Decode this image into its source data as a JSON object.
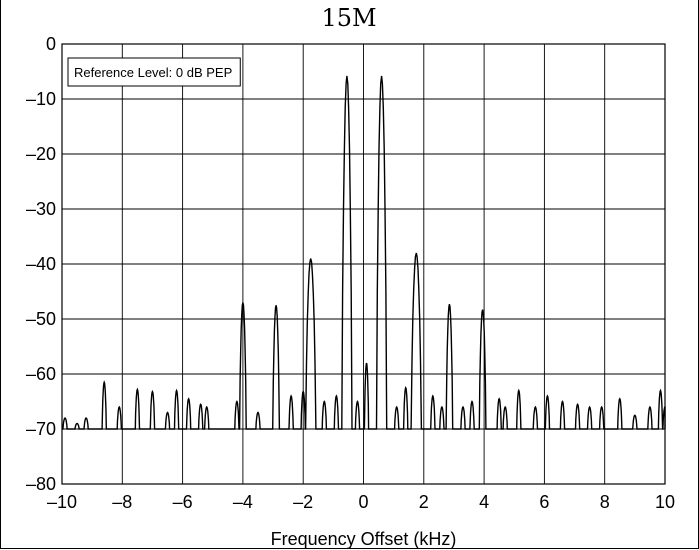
{
  "chart_data": {
    "type": "line",
    "title": "15M",
    "xlabel": "Frequency Offset (kHz)",
    "ylabel": "",
    "xlim": [
      -10,
      10
    ],
    "ylim": [
      -80,
      0
    ],
    "xticks": [
      -10,
      -8,
      -6,
      -4,
      -2,
      0,
      2,
      4,
      6,
      8,
      10
    ],
    "xtick_labels": [
      "–10",
      "–8",
      "–6",
      "–4",
      "–2",
      "0",
      "2",
      "4",
      "6",
      "8",
      "10"
    ],
    "yticks": [
      0,
      -10,
      -20,
      -30,
      -40,
      -50,
      -60,
      -70,
      -80
    ],
    "ytick_labels": [
      "0",
      "–10",
      "–20",
      "–30",
      "–40",
      "–50",
      "–60",
      "–70",
      "–80"
    ],
    "grid": true,
    "annotation": "Reference Level: 0 dB PEP",
    "noise_floor": -70,
    "series": [
      {
        "peaks": [
          {
            "x": -9.9,
            "y": -68
          },
          {
            "x": -9.5,
            "y": -69
          },
          {
            "x": -9.2,
            "y": -68
          },
          {
            "x": -8.6,
            "y": -61.5
          },
          {
            "x": -8.1,
            "y": -66
          },
          {
            "x": -7.5,
            "y": -62.8
          },
          {
            "x": -7.0,
            "y": -63.2
          },
          {
            "x": -6.5,
            "y": -67
          },
          {
            "x": -6.2,
            "y": -63
          },
          {
            "x": -5.8,
            "y": -64.5
          },
          {
            "x": -5.4,
            "y": -65.5
          },
          {
            "x": -5.2,
            "y": -66
          },
          {
            "x": -4.2,
            "y": -65
          },
          {
            "x": -4.0,
            "y": -47
          },
          {
            "x": -3.5,
            "y": -67
          },
          {
            "x": -2.9,
            "y": -47.5
          },
          {
            "x": -2.4,
            "y": -64
          },
          {
            "x": -2.0,
            "y": -63.2
          },
          {
            "x": -1.75,
            "y": -39
          },
          {
            "x": -1.3,
            "y": -65
          },
          {
            "x": -0.9,
            "y": -64
          },
          {
            "x": -0.55,
            "y": -5.8
          },
          {
            "x": -0.2,
            "y": -65
          },
          {
            "x": 0.1,
            "y": -58
          },
          {
            "x": 0.6,
            "y": -5.8
          },
          {
            "x": 1.1,
            "y": -66
          },
          {
            "x": 1.4,
            "y": -62.5
          },
          {
            "x": 1.75,
            "y": -38
          },
          {
            "x": 2.3,
            "y": -64
          },
          {
            "x": 2.6,
            "y": -66
          },
          {
            "x": 2.85,
            "y": -47.3
          },
          {
            "x": 3.3,
            "y": -66
          },
          {
            "x": 3.6,
            "y": -65
          },
          {
            "x": 3.95,
            "y": -48.3
          },
          {
            "x": 4.5,
            "y": -64.5
          },
          {
            "x": 4.7,
            "y": -66
          },
          {
            "x": 5.15,
            "y": -63
          },
          {
            "x": 5.7,
            "y": -66
          },
          {
            "x": 6.1,
            "y": -64
          },
          {
            "x": 6.6,
            "y": -65
          },
          {
            "x": 7.1,
            "y": -65.5
          },
          {
            "x": 7.5,
            "y": -66
          },
          {
            "x": 7.9,
            "y": -66
          },
          {
            "x": 8.5,
            "y": -64.5
          },
          {
            "x": 9.0,
            "y": -67.5
          },
          {
            "x": 9.5,
            "y": -66
          },
          {
            "x": 9.85,
            "y": -63
          },
          {
            "x": 10.0,
            "y": -66
          }
        ]
      }
    ]
  }
}
